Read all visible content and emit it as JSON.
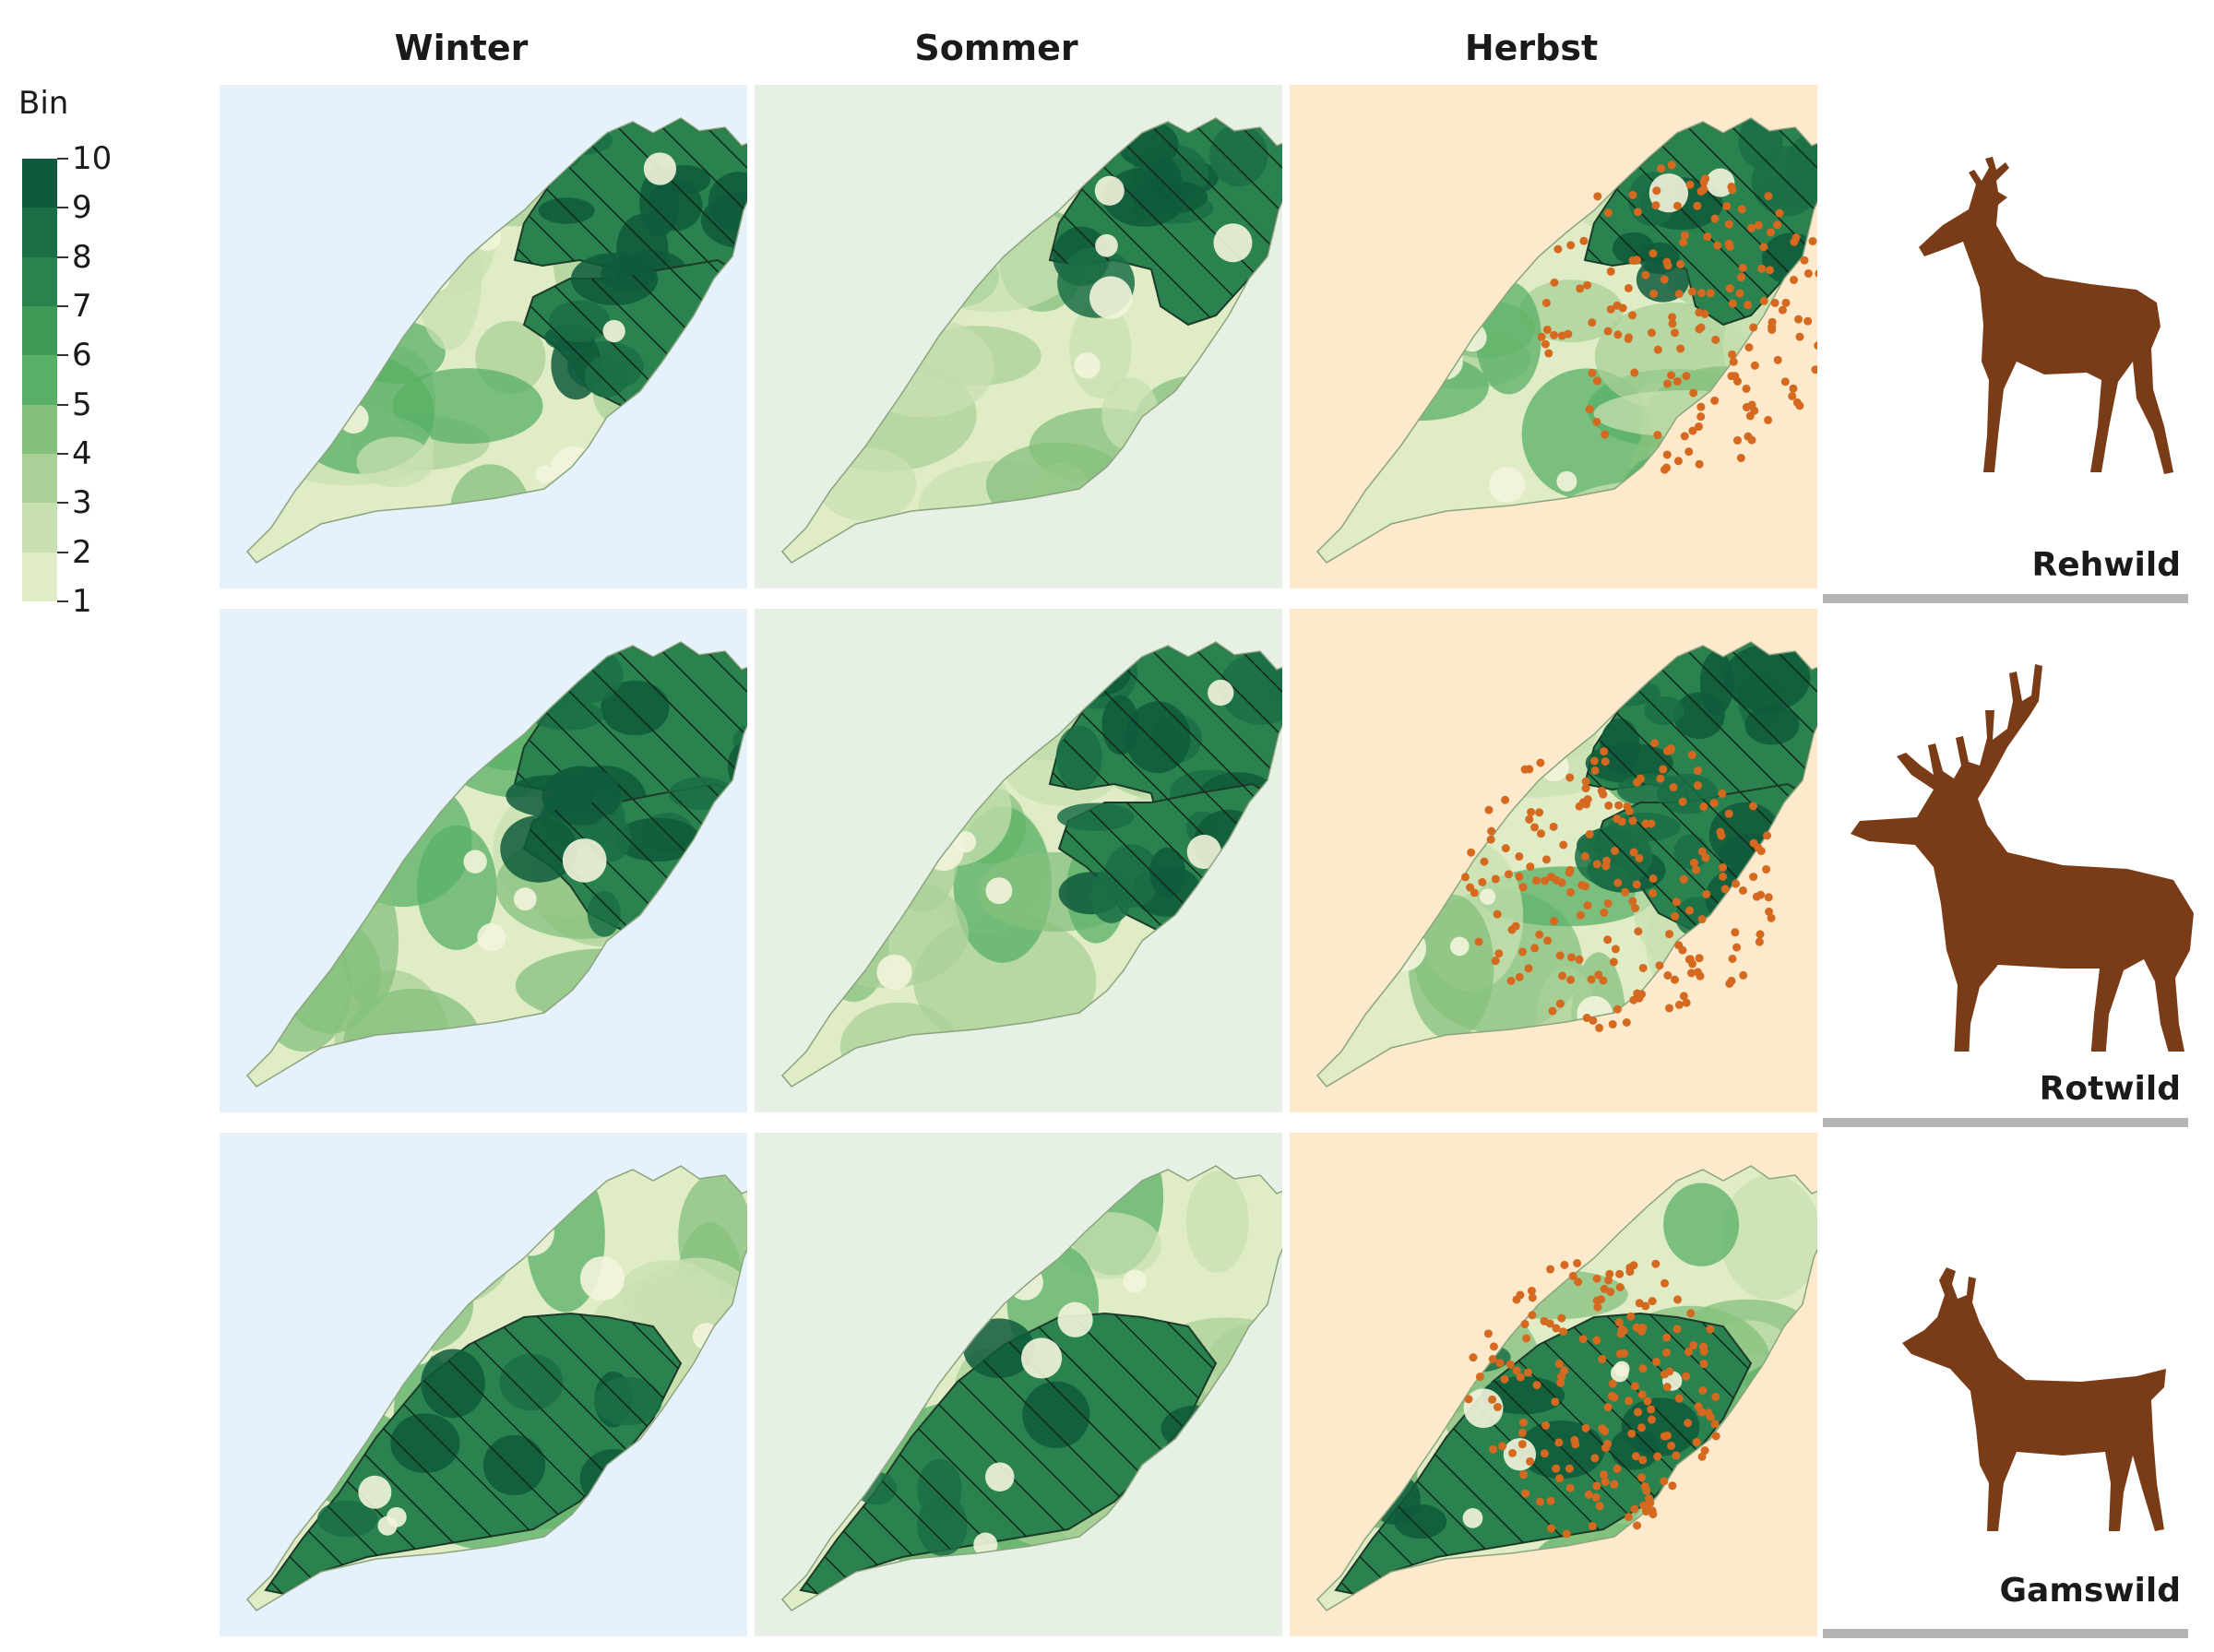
{
  "chart_data": {
    "type": "heatmap",
    "columns": [
      "Winter",
      "Sommer",
      "Herbst"
    ],
    "rows": [
      "Rehwild",
      "Rotwild",
      "Gamswild"
    ],
    "legend": {
      "title": "Bin",
      "bins": [
        10,
        9,
        8,
        7,
        6,
        5,
        4,
        3,
        2,
        1
      ],
      "colors": [
        "#0f5a3c",
        "#1b6e45",
        "#2a834e",
        "#3d9a56",
        "#58b066",
        "#85c07d",
        "#a9d097",
        "#c8e0b0",
        "#e0ecc6",
        "#f3f4dc"
      ]
    },
    "panel_backgrounds": {
      "Winter": "#e6f2fb",
      "Sommer": "#e6f0e5",
      "Herbst": "#fde9cc"
    },
    "hatching": "diagonal lines mark the high-bin core areas",
    "points_color": "#d4691f",
    "points_present_in": "Herbst"
  },
  "colors": {
    "animal": "#7a3b17",
    "divider": "#b4b4b4"
  }
}
